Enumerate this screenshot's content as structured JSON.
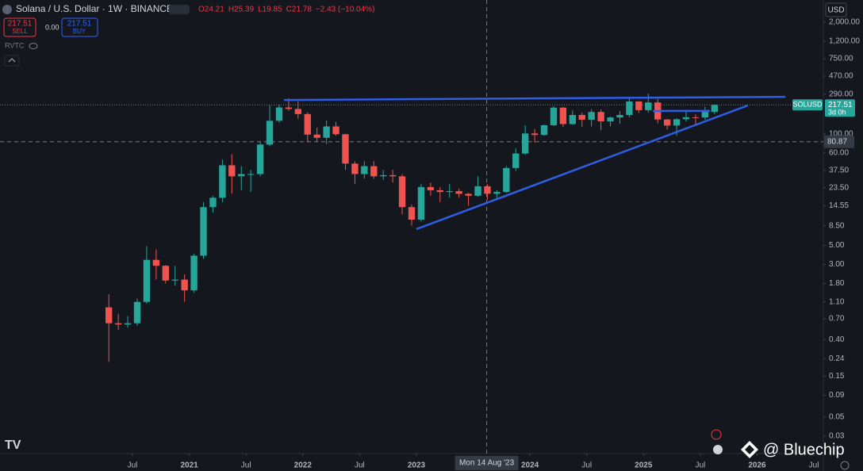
{
  "header": {
    "title": "Solana / U.S. Dollar · 1W · BINANCE",
    "ohlc": [
      "O24.21",
      "H25.39",
      "L19.85",
      "C21.78",
      "−2.43 (−10.04%)"
    ],
    "sell_price": "217.51",
    "sell": "SELL",
    "spread": "0.00",
    "buy_price": "217.51",
    "buy": "BUY",
    "indicator": "RVTC",
    "currency": "USD"
  },
  "watermark": "@ Bluechip",
  "chart_data": {
    "type": "candlestick",
    "symbol": "SOLUSD",
    "countdown": "3d 0h",
    "log_scale": true,
    "grid": false,
    "up_color": "#26a69a",
    "down_color": "#ef5350",
    "trendline_color": "#2f5ee6",
    "x": [
      "2020-04",
      "2020-05",
      "2020-06",
      "2020-07",
      "2020-08",
      "2020-09",
      "2020-10",
      "2020-11",
      "2020-12",
      "2021-01",
      "2021-02",
      "2021-03",
      "2021-04",
      "2021-05",
      "2021-06",
      "2021-07",
      "2021-08",
      "2021-09",
      "2021-10",
      "2021-11",
      "2021-12",
      "2022-01",
      "2022-02",
      "2022-03",
      "2022-04",
      "2022-05",
      "2022-06",
      "2022-07",
      "2022-08",
      "2022-09",
      "2022-10",
      "2022-11",
      "2022-12",
      "2023-01",
      "2023-02",
      "2023-03",
      "2023-04",
      "2023-05",
      "2023-06",
      "2023-07",
      "2023-08",
      "2023-09",
      "2023-10",
      "2023-11",
      "2023-12",
      "2024-01",
      "2024-02",
      "2024-03",
      "2024-04",
      "2024-05",
      "2024-06",
      "2024-07",
      "2024-08",
      "2024-09",
      "2024-10",
      "2024-11",
      "2024-12",
      "2025-01",
      "2025-02",
      "2025-03",
      "2025-04",
      "2025-05",
      "2025-06",
      "2025-07",
      "2025-08"
    ],
    "open": [
      0.95,
      0.62,
      0.6,
      0.62,
      1.1,
      3.4,
      2.9,
      1.95,
      2.0,
      1.5,
      3.8,
      14,
      18,
      43,
      32,
      34,
      34,
      75,
      142,
      203,
      195,
      170,
      98,
      90,
      122,
      99,
      45,
      34,
      42,
      32,
      33,
      32,
      14,
      10,
      24,
      22,
      21,
      21.5,
      20,
      19,
      24.5,
      20,
      21,
      40,
      59,
      101,
      97,
      126,
      202,
      130,
      166,
      146,
      180,
      140,
      155,
      166,
      238,
      189,
      232,
      147,
      125,
      148,
      156,
      155,
      180
    ],
    "high": [
      1.35,
      0.8,
      0.75,
      1.2,
      4.9,
      4.5,
      2.95,
      2.9,
      2.3,
      4,
      16,
      19,
      50,
      58,
      42,
      38,
      80,
      215,
      220,
      259,
      240,
      178,
      118,
      143,
      138,
      100,
      48,
      48,
      48,
      38,
      38,
      34,
      15,
      26,
      27,
      24,
      26,
      23,
      20.5,
      32,
      26,
      22,
      42,
      68,
      126,
      114,
      128,
      210,
      206,
      188,
      178,
      194,
      193,
      160,
      184,
      264,
      240,
      295,
      255,
      149,
      152,
      187,
      168,
      206,
      218
    ],
    "low": [
      0.22,
      0.52,
      0.55,
      0.58,
      1.05,
      2.0,
      1.8,
      1.7,
      1.1,
      1.4,
      3.5,
      12,
      16,
      20,
      22,
      21,
      32,
      72,
      135,
      185,
      150,
      80,
      80,
      76,
      95,
      38,
      26,
      30,
      30,
      29,
      27,
      11.5,
      8.5,
      9.5,
      19,
      16,
      18,
      18,
      14.5,
      18.5,
      17,
      17,
      20.5,
      37,
      57,
      79,
      95,
      123,
      120,
      127,
      121,
      122,
      110,
      122,
      131,
      155,
      175,
      177,
      133,
      112,
      95,
      139,
      126,
      146,
      170
    ],
    "close": [
      0.62,
      0.6,
      0.62,
      1.1,
      3.4,
      2.9,
      1.95,
      2.0,
      1.5,
      3.8,
      14,
      18,
      43,
      32,
      34,
      34,
      75,
      142,
      203,
      195,
      170,
      98,
      90,
      122,
      99,
      45,
      34,
      42,
      32,
      33,
      32,
      14,
      10,
      24,
      22,
      21,
      21.5,
      20,
      19,
      24.5,
      20,
      21,
      40,
      59,
      101,
      97,
      126,
      202,
      130,
      166,
      146,
      180,
      140,
      155,
      166,
      238,
      189,
      232,
      147,
      125,
      148,
      156,
      155,
      180,
      217.51
    ],
    "trendlines": [
      {
        "x": [
          "2021-11",
          "2026-04"
        ],
        "y": [
          248,
          270
        ]
      },
      {
        "x": [
          "2023-01",
          "2025-12"
        ],
        "y": [
          7.75,
          214
        ]
      },
      {
        "x": [
          "2025-02",
          "2025-08"
        ],
        "y": [
          185,
          185
        ]
      }
    ],
    "crosshair": {
      "x": "2023-08-14",
      "x_label": "Mon 14 Aug '23",
      "y": 80.87
    },
    "xlim": [
      "2019-05",
      "2026-08"
    ],
    "xticks": [
      {
        "value": "2020-07",
        "label": "Jul"
      },
      {
        "value": "2021-01",
        "label": "2021"
      },
      {
        "value": "2021-07",
        "label": "Jul"
      },
      {
        "value": "2022-01",
        "label": "2022"
      },
      {
        "value": "2022-07",
        "label": "Jul"
      },
      {
        "value": "2023-01",
        "label": "2023"
      },
      {
        "value": "2024-01",
        "label": "2024"
      },
      {
        "value": "2024-07",
        "label": "Jul"
      },
      {
        "value": "2025-01",
        "label": "2025"
      },
      {
        "value": "2025-07",
        "label": "Jul"
      },
      {
        "value": "2026-01",
        "label": "2026"
      },
      {
        "value": "2026-07",
        "label": "Jul"
      }
    ],
    "ylim": [
      0.0196,
      3630
    ],
    "yticks": [
      {
        "value": 2000,
        "label": "2,000.00"
      },
      {
        "value": 1200,
        "label": "1,200.00"
      },
      {
        "value": 750,
        "label": "750.00"
      },
      {
        "value": 470,
        "label": "470.00"
      },
      {
        "value": 290,
        "label": "290.00"
      },
      {
        "value": 100,
        "label": "100.00"
      },
      {
        "value": 60,
        "label": "60.00"
      },
      {
        "value": 37.5,
        "label": "37.50"
      },
      {
        "value": 23.5,
        "label": "23.50"
      },
      {
        "value": 14.55,
        "label": "14.55"
      },
      {
        "value": 8.5,
        "label": "8.50"
      },
      {
        "value": 5,
        "label": "5.00"
      },
      {
        "value": 3,
        "label": "3.00"
      },
      {
        "value": 1.8,
        "label": "1.80"
      },
      {
        "value": 1.1,
        "label": "1.10"
      },
      {
        "value": 0.7,
        "label": "0.70"
      },
      {
        "value": 0.4,
        "label": "0.40"
      },
      {
        "value": 0.24,
        "label": "0.24"
      },
      {
        "value": 0.15,
        "label": "0.15"
      },
      {
        "value": 0.09,
        "label": "0.09"
      },
      {
        "value": 0.05,
        "label": "0.05"
      },
      {
        "value": 0.03,
        "label": "0.03"
      }
    ]
  }
}
